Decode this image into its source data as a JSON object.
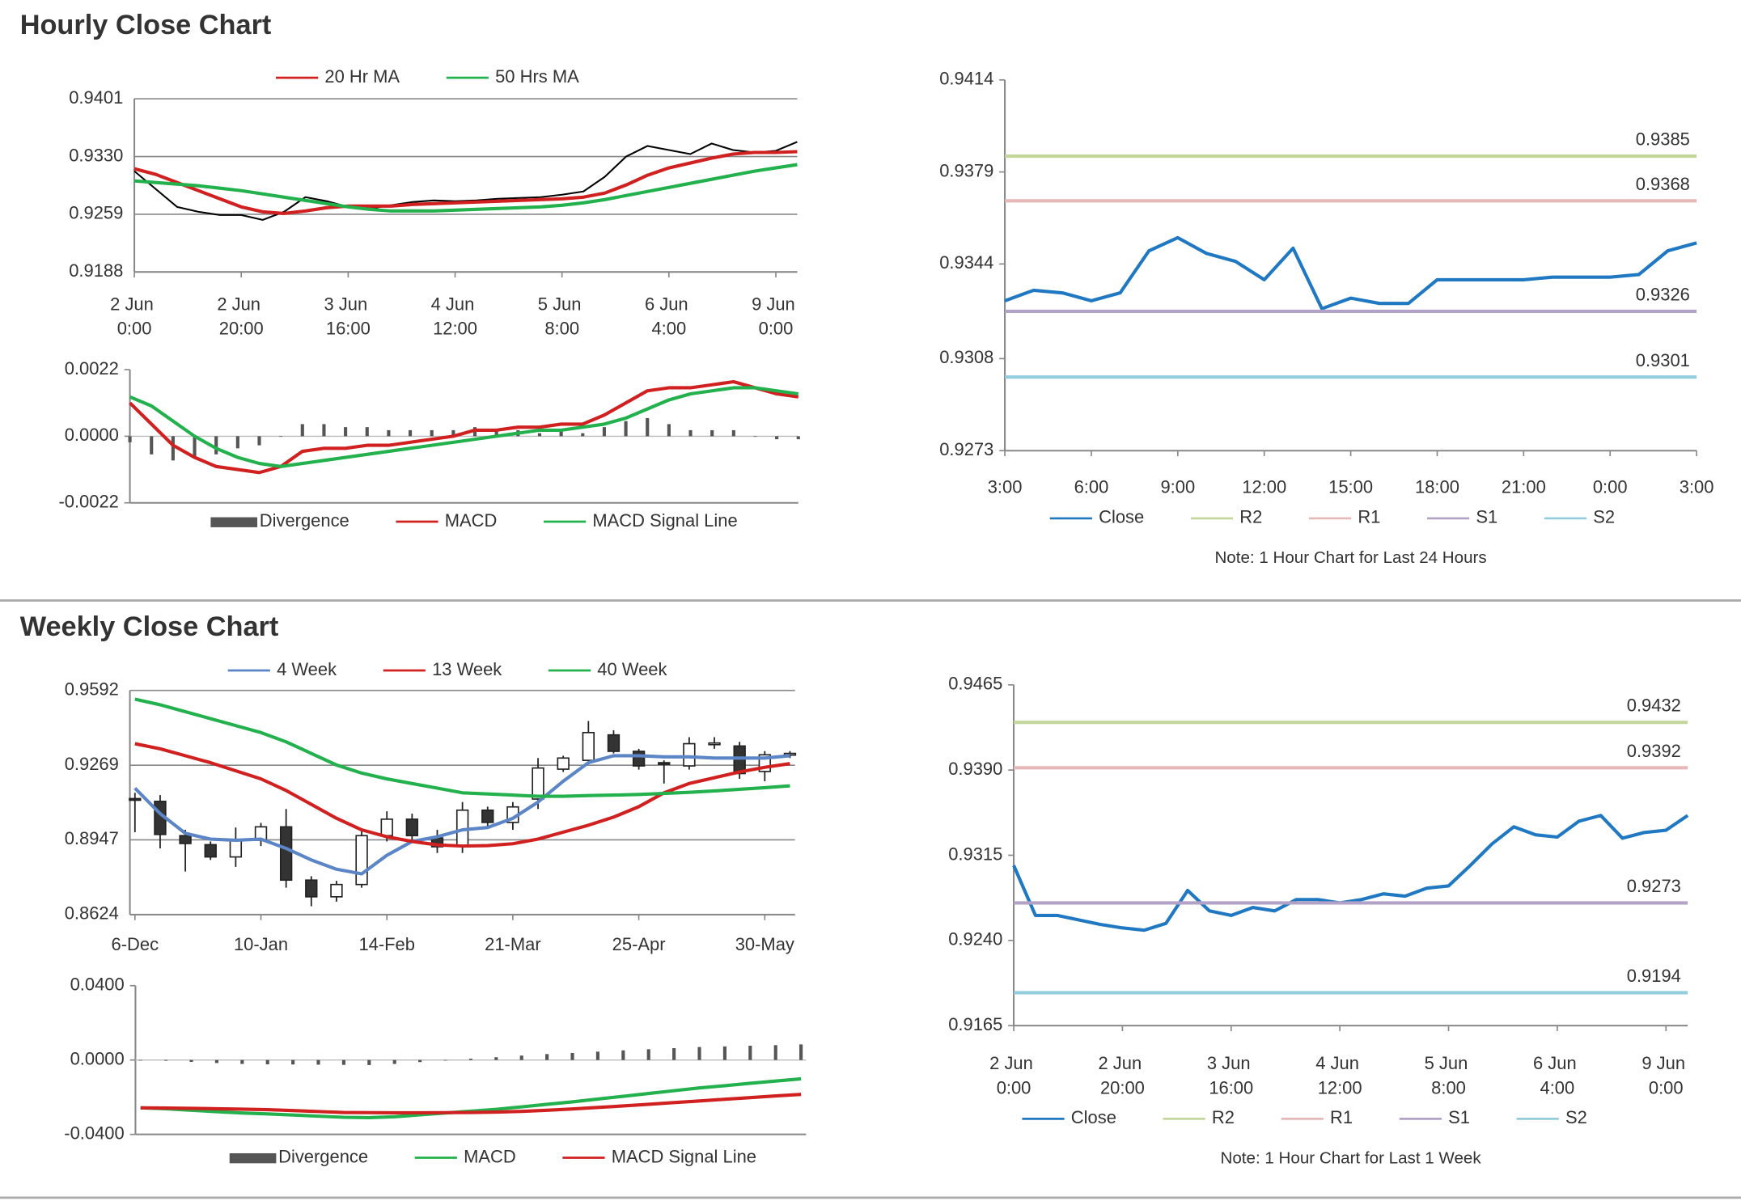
{
  "sections": [
    {
      "title": "Hourly Close Chart"
    },
    {
      "title": "Weekly Close Chart"
    }
  ],
  "chart_data": [
    {
      "type": "line",
      "xlim": [
        0,
        124
      ],
      "ylim": [
        0.9188,
        0.9401
      ],
      "yticks": [
        0.9188,
        0.9259,
        {
          "value": 0.933,
          "label": "0.9330"
        },
        0.9401
      ],
      "xticks": [
        {
          "value": 0,
          "label": "2 Jun 0:00"
        },
        {
          "value": 20,
          "label": "2 Jun 20:00"
        },
        {
          "value": 40,
          "label": "3 Jun 16:00"
        },
        {
          "value": 60,
          "label": "4 Jun 12:00"
        },
        {
          "value": 80,
          "label": "5 Jun 8:00"
        },
        {
          "value": 100,
          "label": "6 Jun 4:00"
        },
        {
          "value": 120,
          "label": "9 Jun 0:00"
        }
      ],
      "grid": true,
      "x": [
        0,
        4,
        8,
        12,
        16,
        20,
        24,
        28,
        32,
        36,
        40,
        44,
        48,
        52,
        56,
        60,
        64,
        68,
        72,
        76,
        80,
        84,
        88,
        92,
        96,
        100,
        104,
        108,
        112,
        116,
        120,
        124
      ],
      "series": [
        {
          "color": "#000000",
          "values": [
            0.9312,
            0.929,
            0.9268,
            0.9262,
            0.9258,
            0.9258,
            0.9252,
            0.9262,
            0.928,
            0.9275,
            0.9268,
            0.9266,
            0.927,
            0.9274,
            0.9276,
            0.9275,
            0.9276,
            0.9278,
            0.9279,
            0.928,
            0.9283,
            0.9287,
            0.9305,
            0.933,
            0.9343,
            0.9338,
            0.9333,
            0.9346,
            0.9338,
            0.9335,
            0.9337,
            0.9348
          ]
        },
        {
          "name": "20 Hr MA",
          "color": "#d02020",
          "values": [
            0.9315,
            0.9308,
            0.9298,
            0.9288,
            0.9278,
            0.9268,
            0.9262,
            0.926,
            0.9263,
            0.9267,
            0.9269,
            0.9269,
            0.9269,
            0.9271,
            0.9272,
            0.9273,
            0.9274,
            0.9275,
            0.9276,
            0.9277,
            0.9278,
            0.928,
            0.9285,
            0.9295,
            0.9307,
            0.9316,
            0.9322,
            0.9328,
            0.9333,
            0.9335,
            0.9335,
            0.9336
          ]
        },
        {
          "name": "50 Hrs MA",
          "color": "#22b14c",
          "values": [
            0.93,
            0.9298,
            0.9296,
            0.9294,
            0.9291,
            0.9288,
            0.9284,
            0.928,
            0.9276,
            0.9272,
            0.9268,
            0.9265,
            0.9263,
            0.9263,
            0.9263,
            0.9264,
            0.9265,
            0.9266,
            0.9267,
            0.9268,
            0.927,
            0.9273,
            0.9277,
            0.9282,
            0.9287,
            0.9292,
            0.9297,
            0.9302,
            0.9307,
            0.9312,
            0.9316,
            0.932
          ]
        }
      ]
    },
    {
      "type": "combo",
      "xlim": [
        0,
        124
      ],
      "ylim": [
        -0.0022,
        0.0022
      ],
      "yticks": [
        -0.0022,
        {
          "value": 0,
          "label": "0.0000"
        },
        0.0022
      ],
      "x": [
        0,
        4,
        8,
        12,
        16,
        20,
        24,
        28,
        32,
        36,
        40,
        44,
        48,
        52,
        56,
        60,
        64,
        68,
        72,
        76,
        80,
        84,
        88,
        92,
        96,
        100,
        104,
        108,
        112,
        116,
        120,
        124
      ],
      "series": [
        {
          "name": "Divergence",
          "type": "bar",
          "color": "#555555",
          "values": [
            -0.0002,
            -0.0006,
            -0.0008,
            -0.0007,
            -0.0006,
            -0.0004,
            -0.0003,
            0,
            0.0004,
            0.0004,
            0.0003,
            0.0003,
            0.0002,
            0.0002,
            0.0002,
            0.0002,
            0.0003,
            0.0002,
            0.0002,
            0.0001,
            0.0002,
            0.0001,
            0.0003,
            0.0005,
            0.0006,
            0.0004,
            0.0002,
            0.0002,
            0.0002,
            0,
            -0.0001,
            -0.0001
          ]
        },
        {
          "name": "MACD",
          "color": "#d02020",
          "values": [
            0.0011,
            0.0004,
            -0.0003,
            -0.0007,
            -0.001,
            -0.0011,
            -0.0012,
            -0.001,
            -0.0005,
            -0.0004,
            -0.0004,
            -0.0003,
            -0.0003,
            -0.0002,
            -0.0001,
            0,
            0.0002,
            0.0002,
            0.0003,
            0.0003,
            0.0004,
            0.0004,
            0.0007,
            0.0011,
            0.0015,
            0.0016,
            0.0016,
            0.0017,
            0.0018,
            0.0016,
            0.0014,
            0.0013
          ]
        },
        {
          "name": "MACD Signal Line",
          "color": "#22b14c",
          "values": [
            0.0013,
            0.001,
            0.0005,
            0,
            -0.0004,
            -0.0007,
            -0.0009,
            -0.001,
            -0.0009,
            -0.0008,
            -0.0007,
            -0.0006,
            -0.0005,
            -0.0004,
            -0.0003,
            -0.0002,
            -0.0001,
            0,
            0.0001,
            0.0002,
            0.0002,
            0.0003,
            0.0004,
            0.0006,
            0.0009,
            0.0012,
            0.0014,
            0.0015,
            0.0016,
            0.0016,
            0.0015,
            0.0014
          ]
        }
      ]
    },
    {
      "type": "line",
      "xlim": [
        0,
        24
      ],
      "ylim": [
        0.9273,
        0.9414
      ],
      "yticks": [
        0.9273,
        0.9308,
        0.9344,
        0.9379,
        0.9414
      ],
      "xticks": [
        {
          "value": 0,
          "label": "3:00"
        },
        {
          "value": 3,
          "label": "6:00"
        },
        {
          "value": 6,
          "label": "9:00"
        },
        {
          "value": 9,
          "label": "12:00"
        },
        {
          "value": 12,
          "label": "15:00"
        },
        {
          "value": 15,
          "label": "18:00"
        },
        {
          "value": 18,
          "label": "21:00"
        },
        {
          "value": 21,
          "label": "0:00"
        },
        {
          "value": 24,
          "label": "3:00"
        }
      ],
      "grid": false,
      "x": [
        0,
        1,
        2,
        3,
        4,
        5,
        6,
        7,
        8,
        9,
        10,
        11,
        12,
        13,
        14,
        15,
        16,
        17,
        18,
        19,
        20,
        21,
        22,
        23,
        24
      ],
      "series": [
        {
          "name": "Close",
          "color": "#1f78c1",
          "values": [
            0.933,
            0.9334,
            0.9333,
            0.933,
            0.9333,
            0.9349,
            0.9354,
            0.9348,
            0.9345,
            0.9338,
            0.935,
            0.9327,
            0.9331,
            0.9329,
            0.9329,
            0.9338,
            0.9338,
            0.9338,
            0.9338,
            0.9339,
            0.9339,
            0.9339,
            0.934,
            0.9349,
            0.9352
          ]
        },
        {
          "name": "R2",
          "color": "#c3d69b",
          "value": 0.9385
        },
        {
          "name": "R1",
          "color": "#e6b9b8",
          "value": 0.9368
        },
        {
          "name": "S1",
          "color": "#b3a2c7",
          "value": 0.9326
        },
        {
          "name": "S2",
          "color": "#93cddd",
          "value": 0.9301
        }
      ],
      "note": "Note: 1 Hour Chart for Last 24 Hours"
    },
    {
      "type": "candlestick",
      "xlim": [
        -0.2,
        26.2
      ],
      "ylim": [
        0.8624,
        0.9592
      ],
      "yticks": [
        0.8624,
        0.8947,
        0.9269,
        0.9592
      ],
      "xticks": [
        {
          "value": 0,
          "label": "6-Dec"
        },
        {
          "value": 5,
          "label": "10-Jan"
        },
        {
          "value": 10,
          "label": "14-Feb"
        },
        {
          "value": 15,
          "label": "21-Mar"
        },
        {
          "value": 20,
          "label": "25-Apr"
        },
        {
          "value": 25,
          "label": "30-May"
        }
      ],
      "grid": true,
      "x": [
        0,
        1,
        2,
        3,
        4,
        5,
        6,
        7,
        8,
        9,
        10,
        11,
        12,
        13,
        14,
        15,
        16,
        17,
        18,
        19,
        20,
        21,
        22,
        23,
        24,
        25,
        26
      ],
      "candles": {
        "open": [
          0.9125,
          0.9113,
          0.8965,
          0.8926,
          0.8873,
          0.8945,
          0.9003,
          0.8773,
          0.8701,
          0.8754,
          0.8965,
          0.9036,
          0.8955,
          0.8922,
          0.9075,
          0.9022,
          0.9123,
          0.9252,
          0.929,
          0.94,
          0.9329,
          0.928,
          0.9266,
          0.9362,
          0.9352,
          0.9242,
          0.9314
        ],
        "high": [
          0.915,
          0.914,
          0.899,
          0.894,
          0.9,
          0.902,
          0.908,
          0.879,
          0.877,
          0.899,
          0.907,
          0.906,
          0.899,
          0.911,
          0.909,
          0.911,
          0.93,
          0.931,
          0.946,
          0.942,
          0.934,
          0.929,
          0.939,
          0.939,
          0.937,
          0.933,
          0.933
        ],
        "low": [
          0.898,
          0.891,
          0.881,
          0.886,
          0.883,
          0.892,
          0.874,
          0.866,
          0.868,
          0.874,
          0.894,
          0.894,
          0.889,
          0.889,
          0.9,
          0.899,
          0.908,
          0.924,
          0.928,
          0.932,
          0.925,
          0.919,
          0.925,
          0.934,
          0.921,
          0.92,
          0.93
        ],
        "close": [
          0.912,
          0.897,
          0.8931,
          0.8873,
          0.8945,
          0.9003,
          0.8773,
          0.8701,
          0.8754,
          0.8965,
          0.9036,
          0.8965,
          0.8917,
          0.9075,
          0.9022,
          0.9089,
          0.9257,
          0.93,
          0.941,
          0.9329,
          0.9266,
          0.9276,
          0.9362,
          0.9365,
          0.9233,
          0.9314,
          0.932
        ]
      },
      "series": [
        {
          "name": "4 Week",
          "color": "#5b85c6",
          "values": [
            0.917,
            0.906,
            0.8975,
            0.895,
            0.8945,
            0.895,
            0.891,
            0.886,
            0.882,
            0.88,
            0.888,
            0.894,
            0.896,
            0.899,
            0.9,
            0.904,
            0.911,
            0.92,
            0.928,
            0.931,
            0.931,
            0.9305,
            0.9305,
            0.93,
            0.93,
            0.93,
            0.931
          ]
        },
        {
          "name": "13 Week",
          "color": "#d02020",
          "values": [
            0.9362,
            0.934,
            0.931,
            0.928,
            0.9245,
            0.921,
            0.916,
            0.91,
            0.904,
            0.899,
            0.896,
            0.894,
            0.8925,
            0.892,
            0.8922,
            0.893,
            0.895,
            0.898,
            0.901,
            0.9045,
            0.909,
            0.915,
            0.919,
            0.9215,
            0.924,
            0.926,
            0.9276
          ]
        },
        {
          "name": "40 Week",
          "color": "#22b14c",
          "values": [
            0.9554,
            0.953,
            0.95,
            0.947,
            0.944,
            0.941,
            0.937,
            0.932,
            0.927,
            0.9235,
            0.921,
            0.919,
            0.917,
            0.915,
            0.9145,
            0.914,
            0.9135,
            0.9135,
            0.9138,
            0.914,
            0.9143,
            0.9147,
            0.9152,
            0.9158,
            0.9165,
            0.9172,
            0.918
          ]
        }
      ]
    },
    {
      "type": "combo",
      "xlim": [
        -0.2,
        26.2
      ],
      "ylim": [
        -0.04,
        0.04
      ],
      "yticks": [
        {
          "value": -0.04,
          "label": "-0.0400"
        },
        {
          "value": 0,
          "label": "0.0000"
        },
        {
          "value": 0.04,
          "label": "0.0400"
        }
      ],
      "x": [
        0,
        1,
        2,
        3,
        4,
        5,
        6,
        7,
        8,
        9,
        10,
        11,
        12,
        13,
        14,
        15,
        16,
        17,
        18,
        19,
        20,
        21,
        22,
        23,
        24,
        25,
        26
      ],
      "series": [
        {
          "name": "Divergence",
          "type": "bar",
          "color": "#555555",
          "values": [
            0,
            -0.0004,
            -0.001,
            -0.0016,
            -0.0021,
            -0.0023,
            -0.0024,
            -0.0025,
            -0.0026,
            -0.0027,
            -0.0021,
            -0.0011,
            -0.0002,
            0.0007,
            0.0015,
            0.0024,
            0.0032,
            0.0038,
            0.0045,
            0.0052,
            0.0058,
            0.0064,
            0.007,
            0.0073,
            0.0077,
            0.008,
            0.0084
          ]
        },
        {
          "name": "MACD",
          "color": "#22b14c",
          "values": [
            -0.0257,
            -0.0262,
            -0.027,
            -0.0278,
            -0.0285,
            -0.029,
            -0.0296,
            -0.0302,
            -0.0308,
            -0.031,
            -0.0305,
            -0.0295,
            -0.0285,
            -0.0275,
            -0.0265,
            -0.0252,
            -0.0238,
            -0.0225,
            -0.021,
            -0.0195,
            -0.018,
            -0.0165,
            -0.015,
            -0.0138,
            -0.0125,
            -0.0113,
            -0.0101
          ]
        },
        {
          "name": "MACD Signal Line",
          "color": "#d02020",
          "values": [
            -0.0257,
            -0.0258,
            -0.026,
            -0.0262,
            -0.0264,
            -0.0267,
            -0.0272,
            -0.0277,
            -0.0282,
            -0.0283,
            -0.0284,
            -0.0284,
            -0.0283,
            -0.0282,
            -0.028,
            -0.0276,
            -0.027,
            -0.0263,
            -0.0255,
            -0.0247,
            -0.0238,
            -0.0229,
            -0.022,
            -0.0211,
            -0.0202,
            -0.0193,
            -0.0185
          ]
        }
      ]
    },
    {
      "type": "line",
      "xlim": [
        0,
        124
      ],
      "ylim": [
        0.9165,
        0.9465
      ],
      "yticks": [
        0.9165,
        {
          "value": 0.924,
          "label": "0.9240"
        },
        0.9315,
        {
          "value": 0.939,
          "label": "0.9390"
        },
        0.9465
      ],
      "xticks": [
        {
          "value": 0,
          "label": "2 Jun 0:00"
        },
        {
          "value": 20,
          "label": "2 Jun 20:00"
        },
        {
          "value": 40,
          "label": "3 Jun 16:00"
        },
        {
          "value": 60,
          "label": "4 Jun 12:00"
        },
        {
          "value": 80,
          "label": "5 Jun 8:00"
        },
        {
          "value": 100,
          "label": "6 Jun 4:00"
        },
        {
          "value": 120,
          "label": "9 Jun 0:00"
        }
      ],
      "grid": false,
      "x": [
        0,
        4,
        8,
        12,
        16,
        20,
        24,
        28,
        32,
        36,
        40,
        44,
        48,
        52,
        56,
        60,
        64,
        68,
        72,
        76,
        80,
        84,
        88,
        92,
        96,
        100,
        104,
        108,
        112,
        116,
        120,
        124
      ],
      "series": [
        {
          "name": "Close",
          "color": "#1f78c1",
          "values": [
            0.9306,
            0.9262,
            0.9262,
            0.9258,
            0.9254,
            0.9251,
            0.9249,
            0.9255,
            0.9284,
            0.9266,
            0.9262,
            0.9269,
            0.9266,
            0.9276,
            0.9276,
            0.9273,
            0.9276,
            0.9281,
            0.9279,
            0.9286,
            0.9288,
            0.9306,
            0.9325,
            0.934,
            0.9333,
            0.9331,
            0.9345,
            0.935,
            0.933,
            0.9335,
            0.9337,
            0.935
          ]
        },
        {
          "name": "R2",
          "color": "#c3d69b",
          "value": 0.9432
        },
        {
          "name": "R1",
          "color": "#e6b9b8",
          "value": 0.9392
        },
        {
          "name": "S1",
          "color": "#b3a2c7",
          "value": 0.9273
        },
        {
          "name": "S2",
          "color": "#93cddd",
          "value": 0.9194
        }
      ],
      "note": "Note: 1 Hour Chart for Last 1 Week"
    }
  ]
}
